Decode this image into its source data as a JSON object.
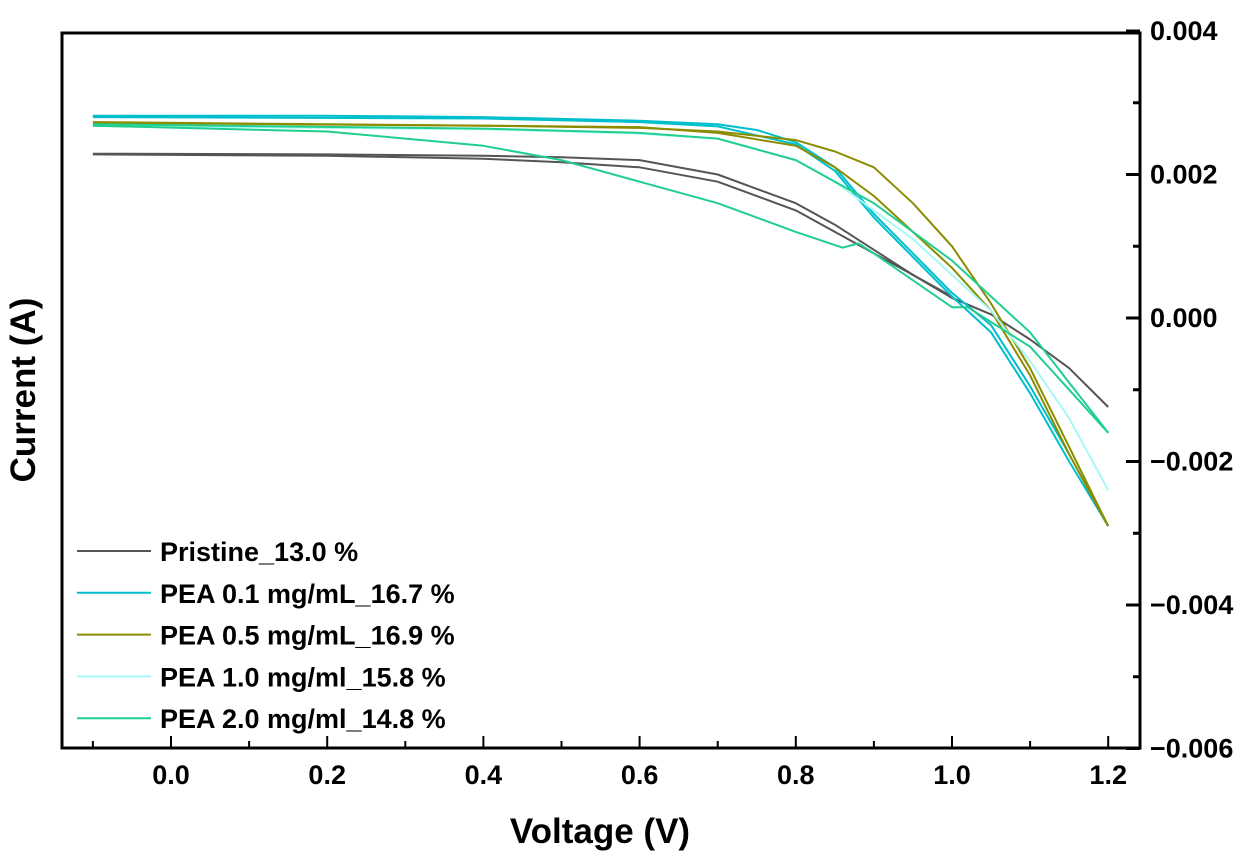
{
  "chart_data": {
    "type": "line",
    "title": "",
    "xlabel": "Voltage (V)",
    "ylabel": "Current (A)",
    "xlim": [
      -0.14,
      1.23
    ],
    "ylim": [
      -0.006,
      0.004
    ],
    "x_ticks": [
      "0.0",
      "0.2",
      "0.4",
      "0.6",
      "0.8",
      "1.0",
      "1.2"
    ],
    "y_ticks": [
      "0.004",
      "0.002",
      "0.000",
      "−0.002",
      "−0.004",
      "−0.006"
    ],
    "y_tick_values": [
      0.004,
      0.002,
      0,
      -0.002,
      -0.004,
      -0.006
    ],
    "x_tick_values": [
      0,
      0.2,
      0.4,
      0.6,
      0.8,
      1.0,
      1.2
    ],
    "y_axis_side": "right",
    "grid": false,
    "legend_position": "bottom-left",
    "series": [
      {
        "name": "Pristine_13.0 %",
        "color": "#555555",
        "sweeps": [
          [
            [
              -0.1,
              0.00229
            ],
            [
              0.2,
              0.00228
            ],
            [
              0.4,
              0.00226
            ],
            [
              0.5,
              0.00224
            ],
            [
              0.6,
              0.0022
            ],
            [
              0.7,
              0.002
            ],
            [
              0.8,
              0.0016
            ],
            [
              0.85,
              0.0013
            ],
            [
              0.9,
              0.00095
            ],
            [
              0.95,
              0.0006
            ],
            [
              1.0,
              0.00028
            ],
            [
              1.05,
              5e-05
            ],
            [
              1.1,
              -0.0003
            ],
            [
              1.15,
              -0.0007
            ],
            [
              1.2,
              -0.00124
            ]
          ],
          [
            [
              -0.1,
              0.00228
            ],
            [
              0.2,
              0.00226
            ],
            [
              0.4,
              0.00222
            ],
            [
              0.5,
              0.00217
            ],
            [
              0.6,
              0.0021
            ],
            [
              0.7,
              0.0019
            ],
            [
              0.8,
              0.0015
            ],
            [
              0.85,
              0.0012
            ],
            [
              0.9,
              0.0009
            ],
            [
              0.95,
              0.0006
            ],
            [
              1.0,
              0.0003
            ]
          ]
        ]
      },
      {
        "name": "PEA 0.1 mg/mL_16.7 %",
        "color": "#00BFCC",
        "sweeps": [
          [
            [
              -0.1,
              0.00282
            ],
            [
              0.2,
              0.00282
            ],
            [
              0.4,
              0.0028
            ],
            [
              0.6,
              0.00275
            ],
            [
              0.7,
              0.0027
            ],
            [
              0.75,
              0.00262
            ],
            [
              0.8,
              0.00245
            ],
            [
              0.85,
              0.0021
            ],
            [
              0.9,
              0.00145
            ],
            [
              0.95,
              0.0009
            ],
            [
              1.0,
              0.00035
            ],
            [
              1.05,
              -0.0001
            ],
            [
              1.1,
              -0.00095
            ],
            [
              1.15,
              -0.0019
            ],
            [
              1.2,
              -0.0029
            ]
          ],
          [
            [
              -0.1,
              0.0028
            ],
            [
              0.4,
              0.00278
            ],
            [
              0.6,
              0.00273
            ],
            [
              0.7,
              0.00267
            ],
            [
              0.8,
              0.00242
            ],
            [
              0.85,
              0.00205
            ],
            [
              0.9,
              0.0014
            ],
            [
              0.95,
              0.00085
            ],
            [
              1.0,
              0.0003
            ],
            [
              1.05,
              -0.0002
            ],
            [
              1.1,
              -0.00105
            ],
            [
              1.15,
              -0.002
            ],
            [
              1.2,
              -0.0029
            ]
          ]
        ]
      },
      {
        "name": "PEA 0.5 mg/mL_16.9 %",
        "color": "#8C8C00",
        "sweeps": [
          [
            [
              -0.1,
              0.00272
            ],
            [
              0.4,
              0.00268
            ],
            [
              0.6,
              0.00265
            ],
            [
              0.7,
              0.0026
            ],
            [
              0.8,
              0.00248
            ],
            [
              0.85,
              0.00232
            ],
            [
              0.9,
              0.0021
            ],
            [
              0.95,
              0.0016
            ],
            [
              1.0,
              0.001
            ],
            [
              1.05,
              0.0002
            ],
            [
              1.1,
              -0.0007
            ],
            [
              1.15,
              -0.0018
            ],
            [
              1.2,
              -0.0029
            ]
          ],
          [
            [
              -0.1,
              0.00273
            ],
            [
              0.6,
              0.00266
            ],
            [
              0.7,
              0.00258
            ],
            [
              0.8,
              0.0024
            ],
            [
              0.85,
              0.0021
            ],
            [
              0.9,
              0.0017
            ],
            [
              0.95,
              0.0012
            ],
            [
              1.0,
              0.0007
            ],
            [
              1.05,
              0.0001
            ],
            [
              1.1,
              -0.0008
            ],
            [
              1.15,
              -0.0019
            ],
            [
              1.2,
              -0.0029
            ]
          ]
        ]
      },
      {
        "name": "PEA 1.0 mg/ml_15.8 %",
        "color": "#A8F8F8",
        "sweeps": [
          [
            [
              -0.1,
              0.00268
            ],
            [
              0.4,
              0.00263
            ],
            [
              0.6,
              0.00257
            ],
            [
              0.7,
              0.0025
            ],
            [
              0.8,
              0.0022
            ],
            [
              0.85,
              0.0019
            ],
            [
              0.9,
              0.0015
            ],
            [
              0.95,
              0.0011
            ],
            [
              1.0,
              0.0006
            ],
            [
              1.05,
              0.0001
            ],
            [
              1.1,
              -0.0006
            ],
            [
              1.15,
              -0.0014
            ],
            [
              1.2,
              -0.0024
            ]
          ]
        ]
      },
      {
        "name": "PEA 2.0 mg/ml_14.8 %",
        "color": "#20CF8F",
        "sweeps": [
          [
            [
              -0.1,
              0.0027
            ],
            [
              0.4,
              0.00264
            ],
            [
              0.6,
              0.00258
            ],
            [
              0.7,
              0.0025
            ],
            [
              0.8,
              0.0022
            ],
            [
              0.9,
              0.0016
            ],
            [
              1.0,
              0.0008
            ],
            [
              1.1,
              -0.0002
            ],
            [
              1.2,
              -0.0016
            ]
          ],
          [
            [
              -0.1,
              0.00268
            ],
            [
              0.2,
              0.0026
            ],
            [
              0.4,
              0.0024
            ],
            [
              0.5,
              0.0022
            ],
            [
              0.6,
              0.0019
            ],
            [
              0.7,
              0.0016
            ],
            [
              0.8,
              0.0012
            ],
            [
              0.86,
              0.00098
            ],
            [
              0.88,
              0.00104
            ],
            [
              0.9,
              0.0009
            ],
            [
              1.0,
              0.00015
            ],
            [
              1.02,
              0.00015
            ],
            [
              1.1,
              -0.0004
            ],
            [
              1.2,
              -0.0016
            ]
          ]
        ]
      }
    ]
  }
}
